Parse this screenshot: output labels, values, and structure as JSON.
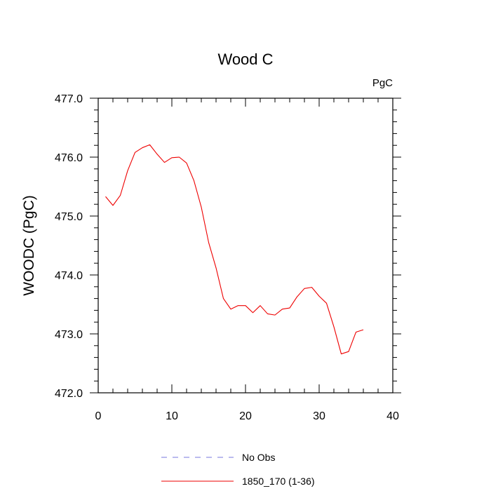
{
  "chart_data": {
    "type": "line",
    "title": "Wood C",
    "units_label": "PgC",
    "ylabel": "WOODC  (PgC)",
    "xlabel": "",
    "xlim": [
      0,
      40
    ],
    "ylim": [
      472.0,
      477.0
    ],
    "x_ticks": [
      0,
      10,
      20,
      30,
      40
    ],
    "y_ticks": [
      472.0,
      473.0,
      474.0,
      475.0,
      476.0,
      477.0
    ],
    "x_tick_labels": [
      "0",
      "10",
      "20",
      "30",
      "40"
    ],
    "y_tick_labels": [
      "472.0",
      "473.0",
      "474.0",
      "475.0",
      "476.0",
      "477.0"
    ],
    "grid": false,
    "legend_placement": "bottom",
    "legend": [
      {
        "label": "No Obs",
        "color": "#7777dd",
        "style": "dashed"
      },
      {
        "label": "1850_170 (1-36)",
        "color": "#ee0000",
        "style": "solid"
      }
    ],
    "series": [
      {
        "name": "1850_170 (1-36)",
        "color": "#ee0000",
        "x": [
          1,
          2,
          3,
          4,
          5,
          6,
          7,
          8,
          9,
          10,
          11,
          12,
          13,
          14,
          15,
          16,
          17,
          18,
          19,
          20,
          21,
          22,
          23,
          24,
          25,
          26,
          27,
          28,
          29,
          30,
          31,
          32,
          33,
          34,
          35,
          36
        ],
        "values": [
          475.33,
          475.18,
          475.35,
          475.77,
          476.08,
          476.16,
          476.21,
          476.05,
          475.91,
          475.99,
          476.0,
          475.9,
          475.6,
          475.15,
          474.55,
          474.12,
          473.6,
          473.42,
          473.48,
          473.48,
          473.36,
          473.48,
          473.34,
          473.32,
          473.42,
          473.44,
          473.63,
          473.77,
          473.79,
          473.64,
          473.52,
          473.12,
          472.66,
          472.7,
          473.03,
          473.07
        ]
      }
    ]
  }
}
